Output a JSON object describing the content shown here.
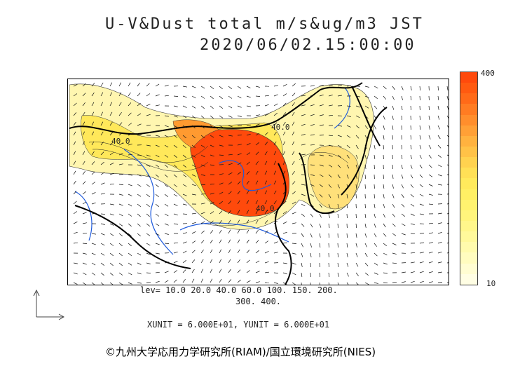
{
  "title": {
    "line1": "U-V&Dust total m/s&ug/m3 JST",
    "line2": "2020/06/02.15:00:00"
  },
  "colorbar": {
    "max_label": "400",
    "min_label": "10",
    "colors": [
      "#ff4a0c",
      "#ff5a10",
      "#ff6a18",
      "#ff7c22",
      "#ff8e2c",
      "#ffa036",
      "#ffb23f",
      "#ffc247",
      "#ffd24f",
      "#ffe056",
      "#ffea5c",
      "#fff064",
      "#fff36f",
      "#fff57c",
      "#fff78b",
      "#fff99b",
      "#fffbad",
      "#fffcbf",
      "#fffdd2",
      "#fffee4"
    ]
  },
  "map": {
    "contour_labels": [
      "40.0",
      "40.0",
      "40.0"
    ],
    "colors": {
      "coast": "#000000",
      "rivers": "#1e5adc",
      "wind_arrows": "#111111",
      "contours": "#222222",
      "dust_high": "#ff4a0c",
      "dust_low": "#fff8b4"
    }
  },
  "levels": {
    "line1": "lev= 10.0 20.0 40.0 60.0 100. 150. 200.",
    "line2": "300. 400."
  },
  "units_text": "XUNIT = 6.000E+01, YUNIT = 6.000E+01",
  "credit": "©九州大学応用力学研究所(RIAM)/国立環境研究所(NIES)"
}
